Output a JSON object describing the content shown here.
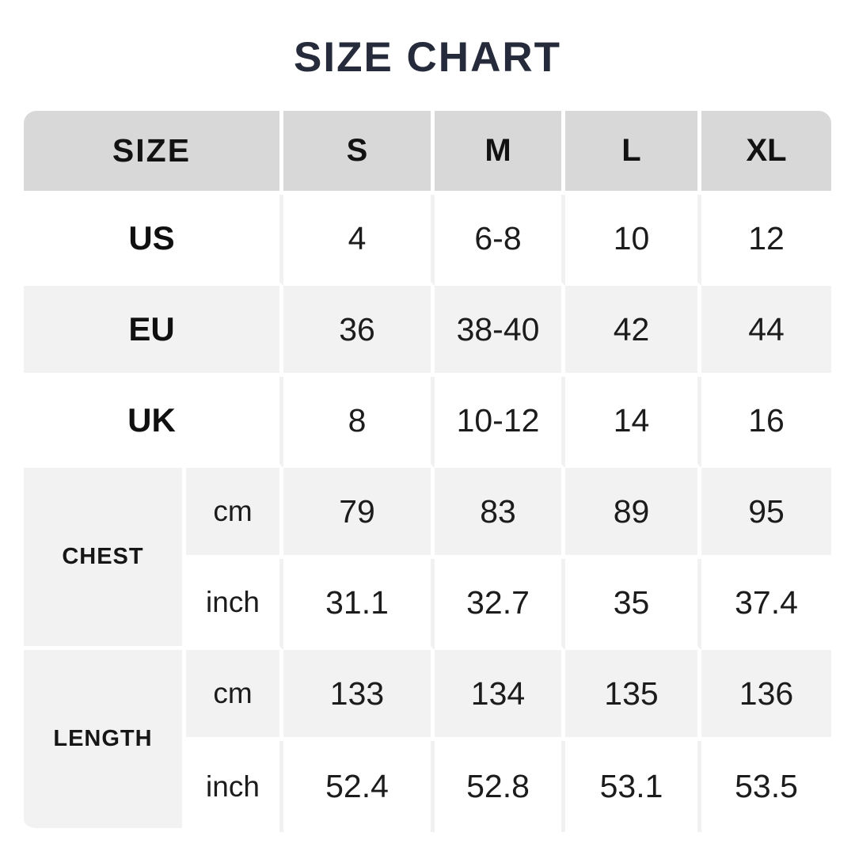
{
  "page": {
    "title": "SIZE CHART"
  },
  "colors": {
    "title": "#262B3C",
    "header_bg": "#D8D8D8",
    "row_alt_bg": "#F2F2F3",
    "row_bg": "#FFFFFF",
    "text": "#1C1C1C",
    "divider": "#F1F1F1"
  },
  "chart_data": {
    "type": "table",
    "title": "SIZE CHART",
    "header": {
      "label": "SIZE",
      "sizes": [
        "S",
        "M",
        "L",
        "XL"
      ]
    },
    "size_rows": [
      {
        "label": "US",
        "values": [
          "4",
          "6-8",
          "10",
          "12"
        ]
      },
      {
        "label": "EU",
        "values": [
          "36",
          "38-40",
          "42",
          "44"
        ]
      },
      {
        "label": "UK",
        "values": [
          "8",
          "10-12",
          "14",
          "16"
        ]
      }
    ],
    "measurements": [
      {
        "label": "CHEST",
        "unit_rows": [
          {
            "unit": "cm",
            "values": [
              "79",
              "83",
              "89",
              "95"
            ]
          },
          {
            "unit": "inch",
            "values": [
              "31.1",
              "32.7",
              "35",
              "37.4"
            ]
          }
        ]
      },
      {
        "label": "LENGTH",
        "unit_rows": [
          {
            "unit": "cm",
            "values": [
              "133",
              "134",
              "135",
              "136"
            ]
          },
          {
            "unit": "inch",
            "values": [
              "52.4",
              "52.8",
              "53.1",
              "53.5"
            ]
          }
        ]
      }
    ]
  }
}
